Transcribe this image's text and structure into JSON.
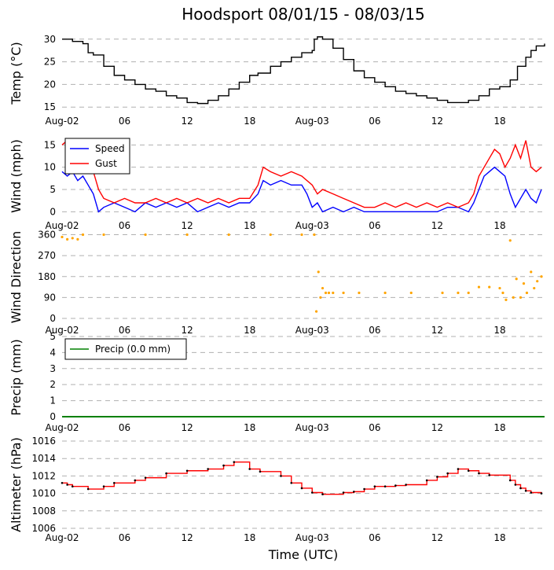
{
  "figure": {
    "title": "Hoodsport 08/01/15 - 08/03/15",
    "xlabel": "Time (UTC)",
    "x_tick_labels": [
      "Aug-02",
      "06",
      "12",
      "18",
      "Aug-03",
      "06",
      "12",
      "18"
    ],
    "x_tick_hours": [
      0,
      6,
      12,
      18,
      24,
      30,
      36,
      42
    ],
    "x_range_hours": [
      0,
      46.3
    ]
  },
  "colors": {
    "temp": "#000000",
    "speed": "#0000ff",
    "gust": "#ff0000",
    "direction": "#ffa500",
    "direction_marker": "#000000",
    "precip": "#008000",
    "altimeter_line": "#ff0000",
    "altimeter_marker": "#000000",
    "grid": "#b0b0b0"
  },
  "chart_data": [
    {
      "type": "line",
      "name": "temperature",
      "ylabel": "Temp (°C)",
      "ylim": [
        14,
        31
      ],
      "yticks": [
        15,
        20,
        25,
        30
      ],
      "grid": true,
      "series": [
        {
          "name": "Temp",
          "color_key": "temp",
          "step": true,
          "x": [
            0,
            1,
            2,
            2.5,
            3,
            4,
            5,
            6,
            7,
            8,
            9,
            10,
            11,
            12,
            13,
            14,
            15,
            16,
            17,
            18,
            18.8,
            20,
            21,
            22,
            23,
            24,
            24.2,
            24.5,
            25,
            26,
            27,
            28,
            29,
            30,
            31,
            32,
            33,
            34,
            35,
            36,
            37,
            38,
            39,
            40,
            41,
            42,
            43,
            43.7,
            44.5,
            45,
            45.5,
            46.3
          ],
          "y": [
            30,
            29.5,
            29,
            27,
            26.5,
            24,
            22,
            21,
            20,
            19,
            18.5,
            17.5,
            17,
            16,
            15.8,
            16.5,
            17.5,
            19,
            20.5,
            22,
            22.5,
            24,
            25,
            26,
            27,
            27.5,
            30,
            30.5,
            30,
            28,
            25.5,
            23,
            21.5,
            20.5,
            19.5,
            18.5,
            18,
            17.5,
            17,
            16.5,
            16,
            16,
            16.5,
            17.5,
            19,
            19.5,
            21,
            24,
            26,
            27.5,
            28.5,
            29
          ]
        }
      ]
    },
    {
      "type": "line",
      "name": "wind",
      "ylabel": "Wind (mph)",
      "ylim": [
        -1,
        17
      ],
      "yticks": [
        0,
        5,
        10,
        15
      ],
      "grid": true,
      "legend": {
        "position": "top-left",
        "entries": [
          "Speed",
          "Gust"
        ]
      },
      "series": [
        {
          "name": "Speed",
          "color_key": "speed",
          "x": [
            0,
            0.5,
            1,
            1.5,
            2,
            2.5,
            3,
            3.5,
            4,
            5,
            6,
            7,
            8,
            9,
            10,
            11,
            12,
            13,
            14,
            15,
            16,
            17,
            18,
            18.8,
            19.3,
            20,
            21,
            22,
            23,
            23.5,
            24,
            24.5,
            25,
            26,
            27,
            28,
            29,
            30,
            32,
            34,
            36,
            37,
            38,
            39,
            39.5,
            40,
            40.5,
            41,
            41.5,
            42,
            42.5,
            43,
            43.5,
            44,
            44.5,
            45,
            45.5,
            46
          ],
          "y": [
            9,
            8,
            9,
            7,
            8,
            6,
            4,
            0,
            1,
            2,
            1,
            0,
            2,
            1,
            2,
            1,
            2,
            0,
            1,
            2,
            1,
            2,
            2,
            4,
            7,
            6,
            7,
            6,
            6,
            4,
            1,
            2,
            0,
            1,
            0,
            1,
            0,
            0,
            0,
            0,
            0,
            1,
            1,
            0,
            2,
            5,
            8,
            9,
            10,
            9,
            8,
            4,
            1,
            3,
            5,
            3,
            2,
            5
          ]
        },
        {
          "name": "Gust",
          "color_key": "gust",
          "x": [
            0,
            0.5,
            1,
            2,
            3,
            3.5,
            4,
            5,
            6,
            7,
            8,
            9,
            10,
            11,
            12,
            13,
            14,
            15,
            16,
            17,
            18,
            18.8,
            19.3,
            20,
            21,
            22,
            23,
            24,
            24.5,
            25,
            26,
            27,
            28,
            29,
            30,
            31,
            32,
            33,
            34,
            35,
            36,
            37,
            38,
            39,
            39.5,
            40,
            40.5,
            41,
            41.5,
            42,
            42.5,
            43,
            43.5,
            44,
            44.5,
            45,
            45.5,
            46
          ],
          "y": [
            15,
            16,
            10,
            10,
            9,
            5,
            3,
            2,
            3,
            2,
            2,
            3,
            2,
            3,
            2,
            3,
            2,
            3,
            2,
            3,
            3,
            6,
            10,
            9,
            8,
            9,
            8,
            6,
            4,
            5,
            4,
            3,
            2,
            1,
            1,
            2,
            1,
            2,
            1,
            2,
            1,
            2,
            1,
            2,
            4,
            8,
            10,
            12,
            14,
            13,
            10,
            12,
            15,
            12,
            16,
            10,
            9,
            10
          ]
        }
      ]
    },
    {
      "type": "scatter",
      "name": "wind_direction",
      "ylabel": "Wind Direction",
      "ylim": [
        -10,
        365
      ],
      "yticks": [
        0,
        90,
        180,
        270,
        360
      ],
      "grid": true,
      "series": [
        {
          "name": "Direction",
          "color_key": "direction",
          "x": [
            0,
            0.5,
            1,
            1.5,
            2,
            4,
            8,
            12,
            16,
            20,
            23,
            24.2,
            24.4,
            24.6,
            24.8,
            25,
            25.3,
            25.6,
            26,
            27,
            28.5,
            31,
            33.5,
            36.5,
            38,
            39,
            40,
            41,
            42,
            42.3,
            42.6,
            43,
            43.3,
            43.6,
            44,
            44.3,
            44.6,
            45,
            45.3,
            45.6,
            46
          ],
          "y": [
            350,
            340,
            345,
            340,
            360,
            360,
            360,
            360,
            360,
            360,
            360,
            360,
            30,
            200,
            90,
            130,
            110,
            110,
            110,
            110,
            110,
            110,
            110,
            110,
            110,
            110,
            135,
            135,
            130,
            110,
            80,
            335,
            90,
            170,
            90,
            150,
            110,
            200,
            130,
            160,
            180
          ]
        }
      ]
    },
    {
      "type": "line",
      "name": "precipitation",
      "ylabel": "Precip (mm)",
      "ylim": [
        -0.1,
        5
      ],
      "yticks": [
        0,
        1,
        2,
        3,
        4,
        5
      ],
      "grid": true,
      "legend": {
        "position": "top-left",
        "entries": [
          "Precip (0.0 mm)"
        ]
      },
      "series": [
        {
          "name": "Precip (0.0 mm)",
          "color_key": "precip",
          "x": [
            0,
            46.3
          ],
          "y": [
            0,
            0
          ]
        }
      ]
    },
    {
      "type": "line",
      "name": "altimeter",
      "ylabel": "Altimeter (hPa)",
      "ylim": [
        1006,
        1016
      ],
      "yticks": [
        1006,
        1008,
        1010,
        1012,
        1014,
        1016
      ],
      "grid": true,
      "series": [
        {
          "name": "Altimeter",
          "color_key": "altimeter_line",
          "step": true,
          "x": [
            0,
            0.5,
            1,
            2.5,
            4,
            5,
            7,
            8,
            10,
            12,
            14,
            15.5,
            16.5,
            18,
            19,
            21,
            22,
            23,
            24,
            25,
            27,
            28,
            29,
            30,
            31,
            32,
            33,
            35,
            36,
            37,
            38,
            39,
            40,
            41,
            43,
            43.5,
            44,
            44.5,
            45,
            46
          ],
          "y": [
            1011.2,
            1011,
            1010.8,
            1010.5,
            1010.8,
            1011.2,
            1011.5,
            1011.8,
            1012.3,
            1012.6,
            1012.8,
            1013.2,
            1013.6,
            1012.8,
            1012.5,
            1012,
            1011.2,
            1010.6,
            1010.1,
            1009.9,
            1010.1,
            1010.2,
            1010.5,
            1010.8,
            1010.8,
            1010.9,
            1011,
            1011.5,
            1011.9,
            1012.3,
            1012.8,
            1012.6,
            1012.3,
            1012.1,
            1011.5,
            1011,
            1010.6,
            1010.3,
            1010.1,
            1010
          ]
        }
      ]
    }
  ]
}
